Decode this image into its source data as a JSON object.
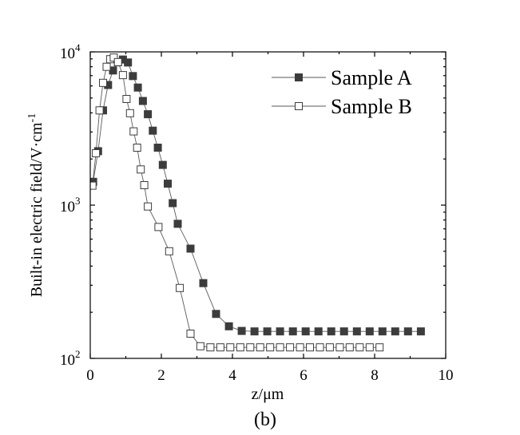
{
  "chart_data": {
    "type": "scatter",
    "xlabel": "z/μm",
    "ylabel": "Built-in electric field/V·cm",
    "ylabel_superscript": "-1",
    "caption": "(b)",
    "xlim": [
      0,
      10
    ],
    "ylim": [
      100,
      10000
    ],
    "y_scale": "log",
    "x_ticks": [
      "0",
      "2",
      "4",
      "6",
      "8",
      "10"
    ],
    "y_ticks": [
      {
        "base": "10",
        "exp": "2"
      },
      {
        "base": "10",
        "exp": "3"
      },
      {
        "base": "10",
        "exp": "4"
      }
    ],
    "grid": false,
    "legend_position": "top-right",
    "series": [
      {
        "name": "Sample A",
        "marker": "filled-square",
        "color": "#3c3c3c",
        "x": [
          0.08,
          0.22,
          0.36,
          0.5,
          0.64,
          0.78,
          0.92,
          1.06,
          1.2,
          1.34,
          1.48,
          1.62,
          1.76,
          1.9,
          2.04,
          2.18,
          2.32,
          2.46,
          2.82,
          3.18,
          3.54,
          3.9,
          4.26,
          4.62,
          4.98,
          5.34,
          5.7,
          6.06,
          6.42,
          6.78,
          7.14,
          7.5,
          7.86,
          8.22,
          8.58,
          8.94,
          9.3
        ],
        "y": [
          1420,
          2250,
          4150,
          6080,
          7560,
          8560,
          8910,
          8530,
          6950,
          5850,
          4780,
          3920,
          3060,
          2370,
          1830,
          1380,
          1030,
          755,
          520,
          310,
          195,
          162,
          151,
          150,
          150,
          150,
          150,
          150,
          150,
          150,
          150,
          150,
          150,
          150,
          150,
          150,
          150
        ]
      },
      {
        "name": "Sample B",
        "marker": "open-square",
        "color": "#3c3c3c",
        "x": [
          0.06,
          0.16,
          0.26,
          0.36,
          0.46,
          0.56,
          0.66,
          0.78,
          0.92,
          1.02,
          1.12,
          1.22,
          1.32,
          1.42,
          1.52,
          1.62,
          1.92,
          2.22,
          2.52,
          2.82,
          3.1,
          3.38,
          3.66,
          3.94,
          4.22,
          4.5,
          4.78,
          5.06,
          5.34,
          5.62,
          5.9,
          6.18,
          6.46,
          6.74,
          7.02,
          7.3,
          7.58,
          7.86,
          8.14
        ],
        "y": [
          1340,
          2180,
          4150,
          6280,
          7990,
          8950,
          9180,
          8580,
          7050,
          4930,
          3980,
          3030,
          2370,
          1710,
          1350,
          980,
          720,
          500,
          288,
          145,
          120,
          118,
          118,
          118,
          118,
          118,
          118,
          118,
          118,
          118,
          118,
          118,
          118,
          118,
          118,
          118,
          118,
          118,
          118
        ]
      }
    ]
  }
}
